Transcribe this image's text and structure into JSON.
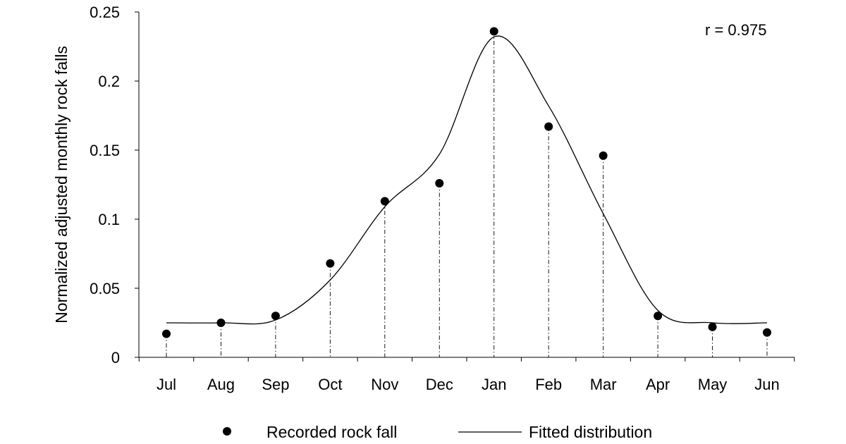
{
  "chart_data": {
    "type": "scatter",
    "categories": [
      "Jul",
      "Aug",
      "Sep",
      "Oct",
      "Nov",
      "Dec",
      "Jan",
      "Feb",
      "Mar",
      "Apr",
      "May",
      "Jun"
    ],
    "ylabel": "Normalized adjusted monthly rock falls",
    "xlabel": "",
    "ylim": [
      0,
      0.25
    ],
    "yticks": [
      "0",
      "0.05",
      "0.1",
      "0.15",
      "0.2",
      "0.25"
    ],
    "yticks_values": [
      0,
      0.05,
      0.1,
      0.15,
      0.2,
      0.25
    ],
    "series": [
      {
        "name": "Recorded rock fall",
        "kind": "points",
        "values": [
          0.017,
          0.025,
          0.03,
          0.068,
          0.113,
          0.126,
          0.236,
          0.167,
          0.146,
          0.03,
          0.022,
          0.018
        ]
      },
      {
        "name": "Fitted distribution",
        "kind": "line",
        "values": [
          0.025,
          0.025,
          0.027,
          0.056,
          0.109,
          0.147,
          0.232,
          0.182,
          0.104,
          0.034,
          0.025,
          0.025
        ]
      }
    ],
    "annotation": "r = 0.975",
    "legend_position": "bottom",
    "grid": false
  }
}
